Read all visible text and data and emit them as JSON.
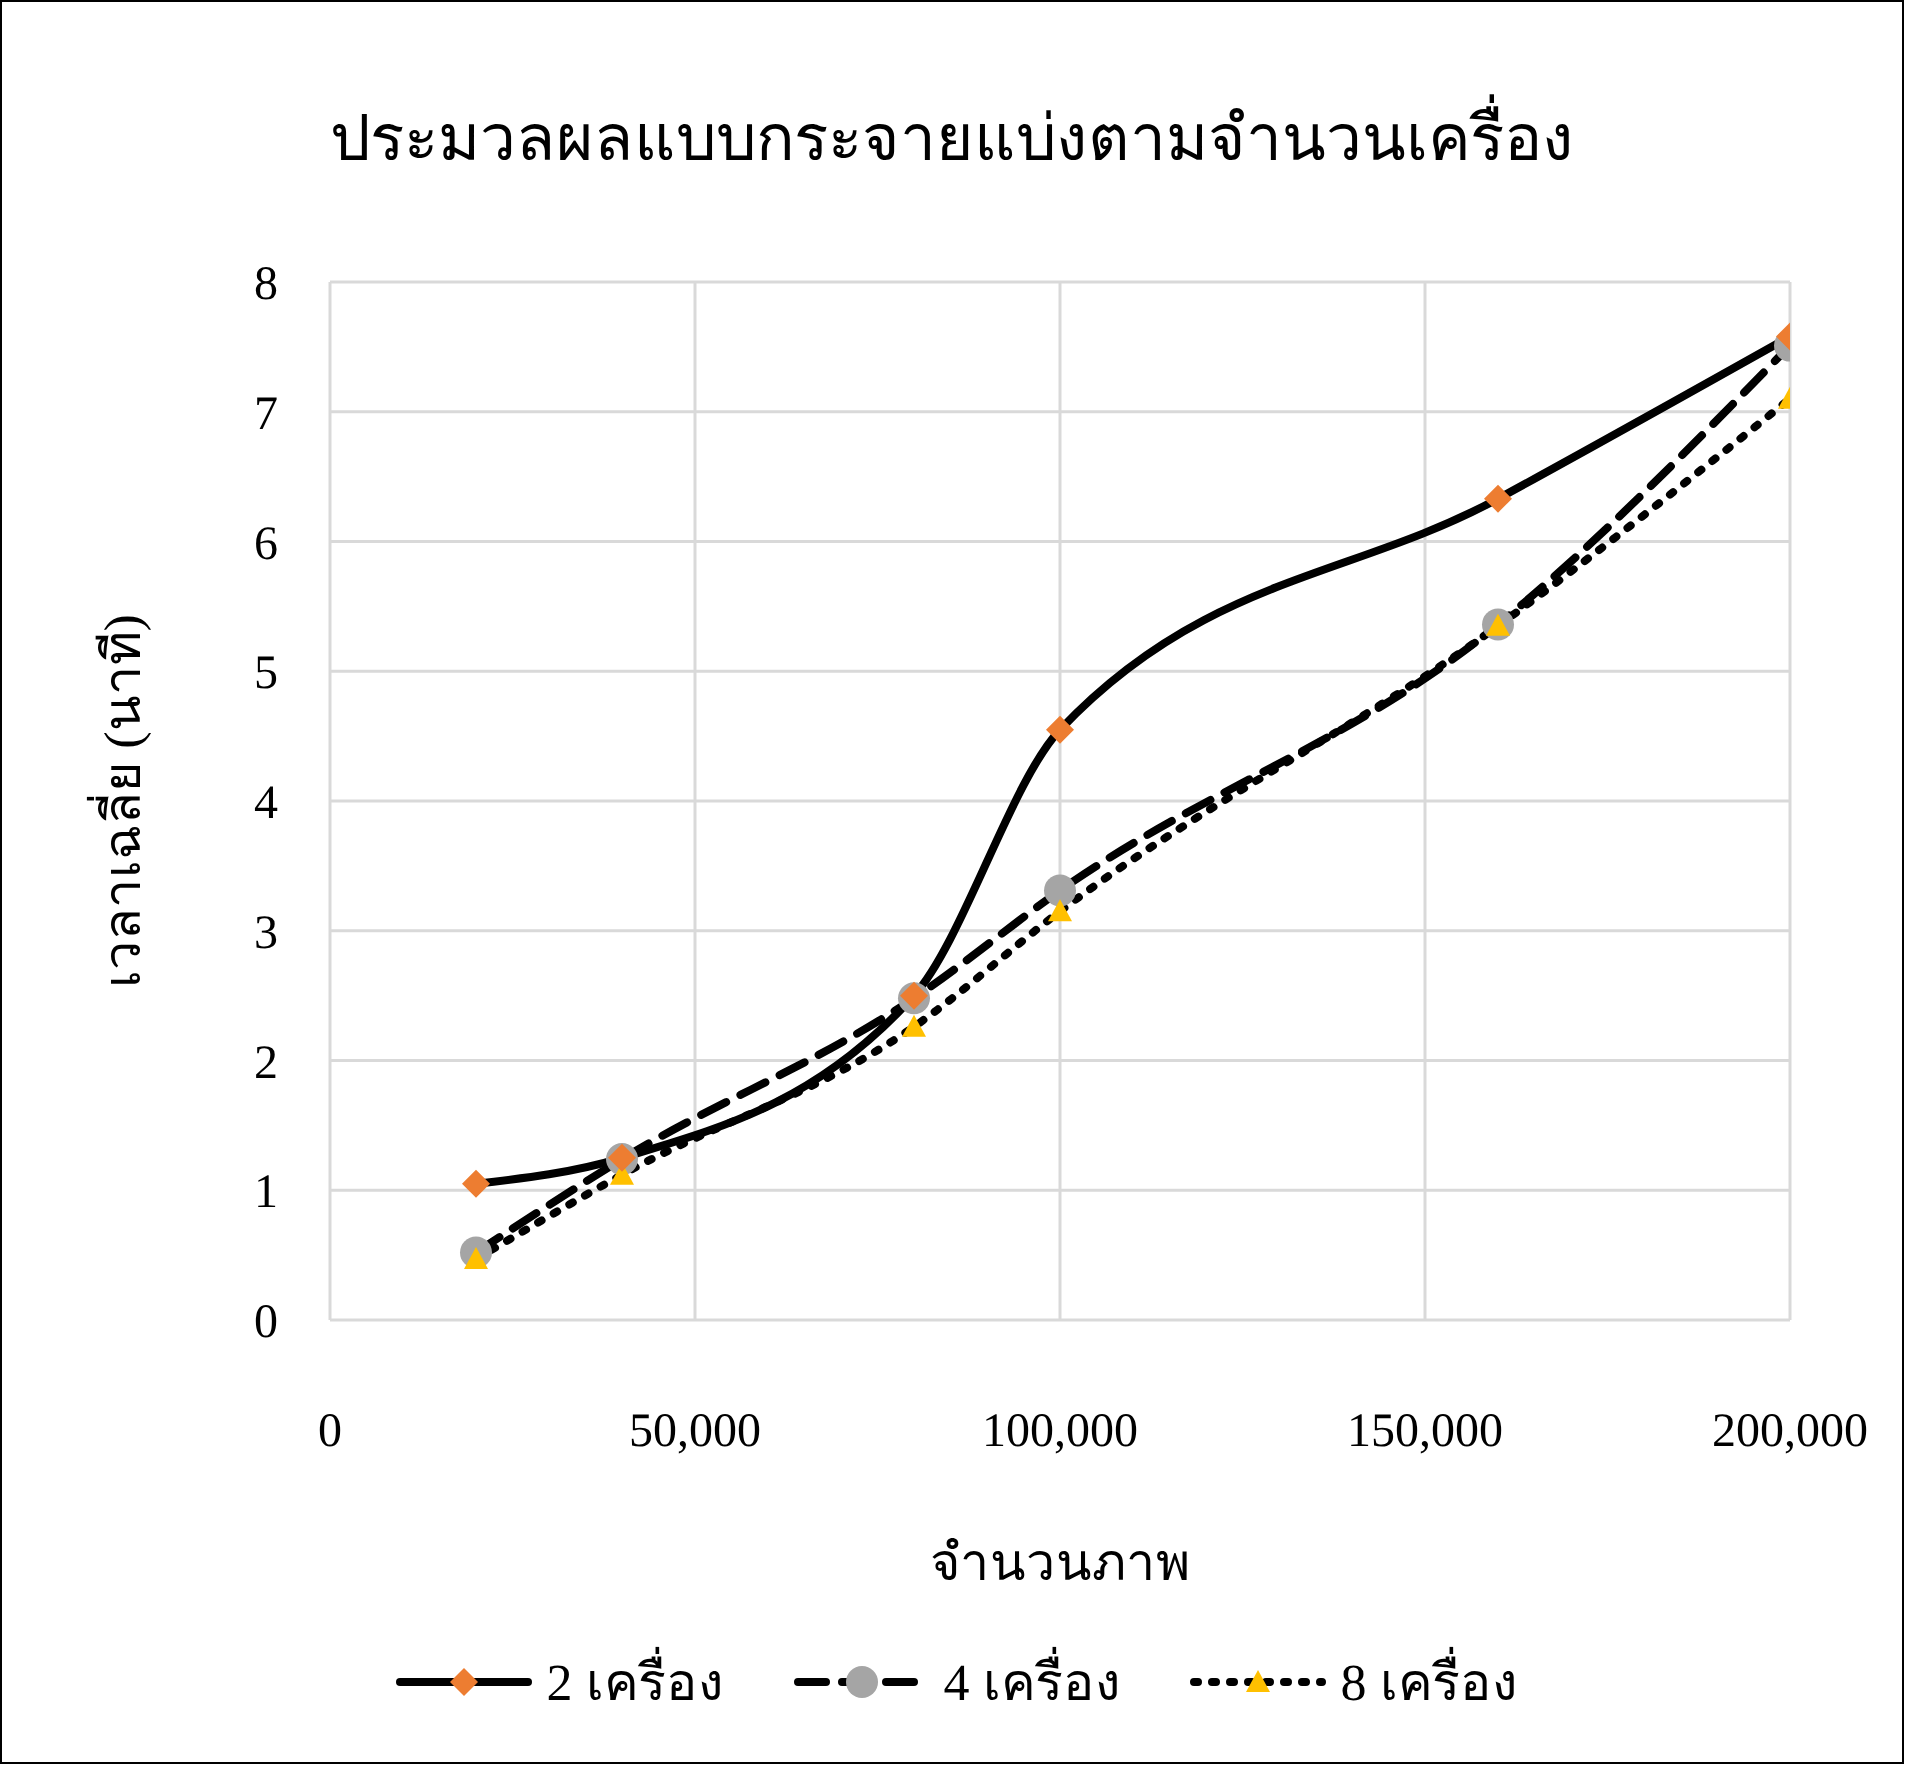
{
  "chart_data": {
    "type": "line",
    "title": "ประมวลผลแบบกระจายแบ่งตามจำนวนเครื่อง",
    "xlabel": "จำนวนภาพ",
    "ylabel": "เวลาเฉลี่ย (นาที)",
    "x": [
      20000,
      40000,
      80000,
      100000,
      160000,
      200000
    ],
    "xlim": [
      0,
      200000
    ],
    "xticks": [
      0,
      {
        "value": 50000,
        "label": "50,000"
      },
      {
        "value": 100000,
        "label": "100,000"
      },
      {
        "value": 150000,
        "label": "150,000"
      },
      {
        "value": 200000,
        "label": "200,000"
      }
    ],
    "ylim": [
      0,
      8
    ],
    "yticks": [
      0,
      1,
      2,
      3,
      4,
      5,
      6,
      7,
      8
    ],
    "grid": true,
    "legend": "bottom",
    "series": [
      {
        "name": "2 เครื่อง",
        "color": "#000000",
        "colors": [
          "#ed7d31",
          "#ed7d31",
          "#ed7d31",
          "#ed7d31",
          "#ed7d31",
          "#ed7d31"
        ],
        "marker": "diamond",
        "line_style": "solid",
        "values": [
          1.05,
          1.25,
          2.5,
          4.55,
          6.33,
          7.58
        ]
      },
      {
        "name": "4 เครื่อง",
        "color": "#000000",
        "colors": [
          "#a5a5a5",
          "#a5a5a5",
          "#a5a5a5",
          "#a5a5a5",
          "#a5a5a5",
          "#a5a5a5"
        ],
        "marker": "circle",
        "line_style": "dashed",
        "values": [
          0.52,
          1.24,
          2.48,
          3.31,
          5.36,
          7.51
        ]
      },
      {
        "name": "8 เครื่อง",
        "color": "#000000",
        "colors": [
          "#ffc000",
          "#ffc000",
          "#ffc000",
          "#ffc000",
          "#ffc000",
          "#ffc000"
        ],
        "marker": "triangle",
        "line_style": "dotted",
        "values": [
          0.47,
          1.12,
          2.26,
          3.15,
          5.35,
          7.1
        ]
      }
    ]
  }
}
